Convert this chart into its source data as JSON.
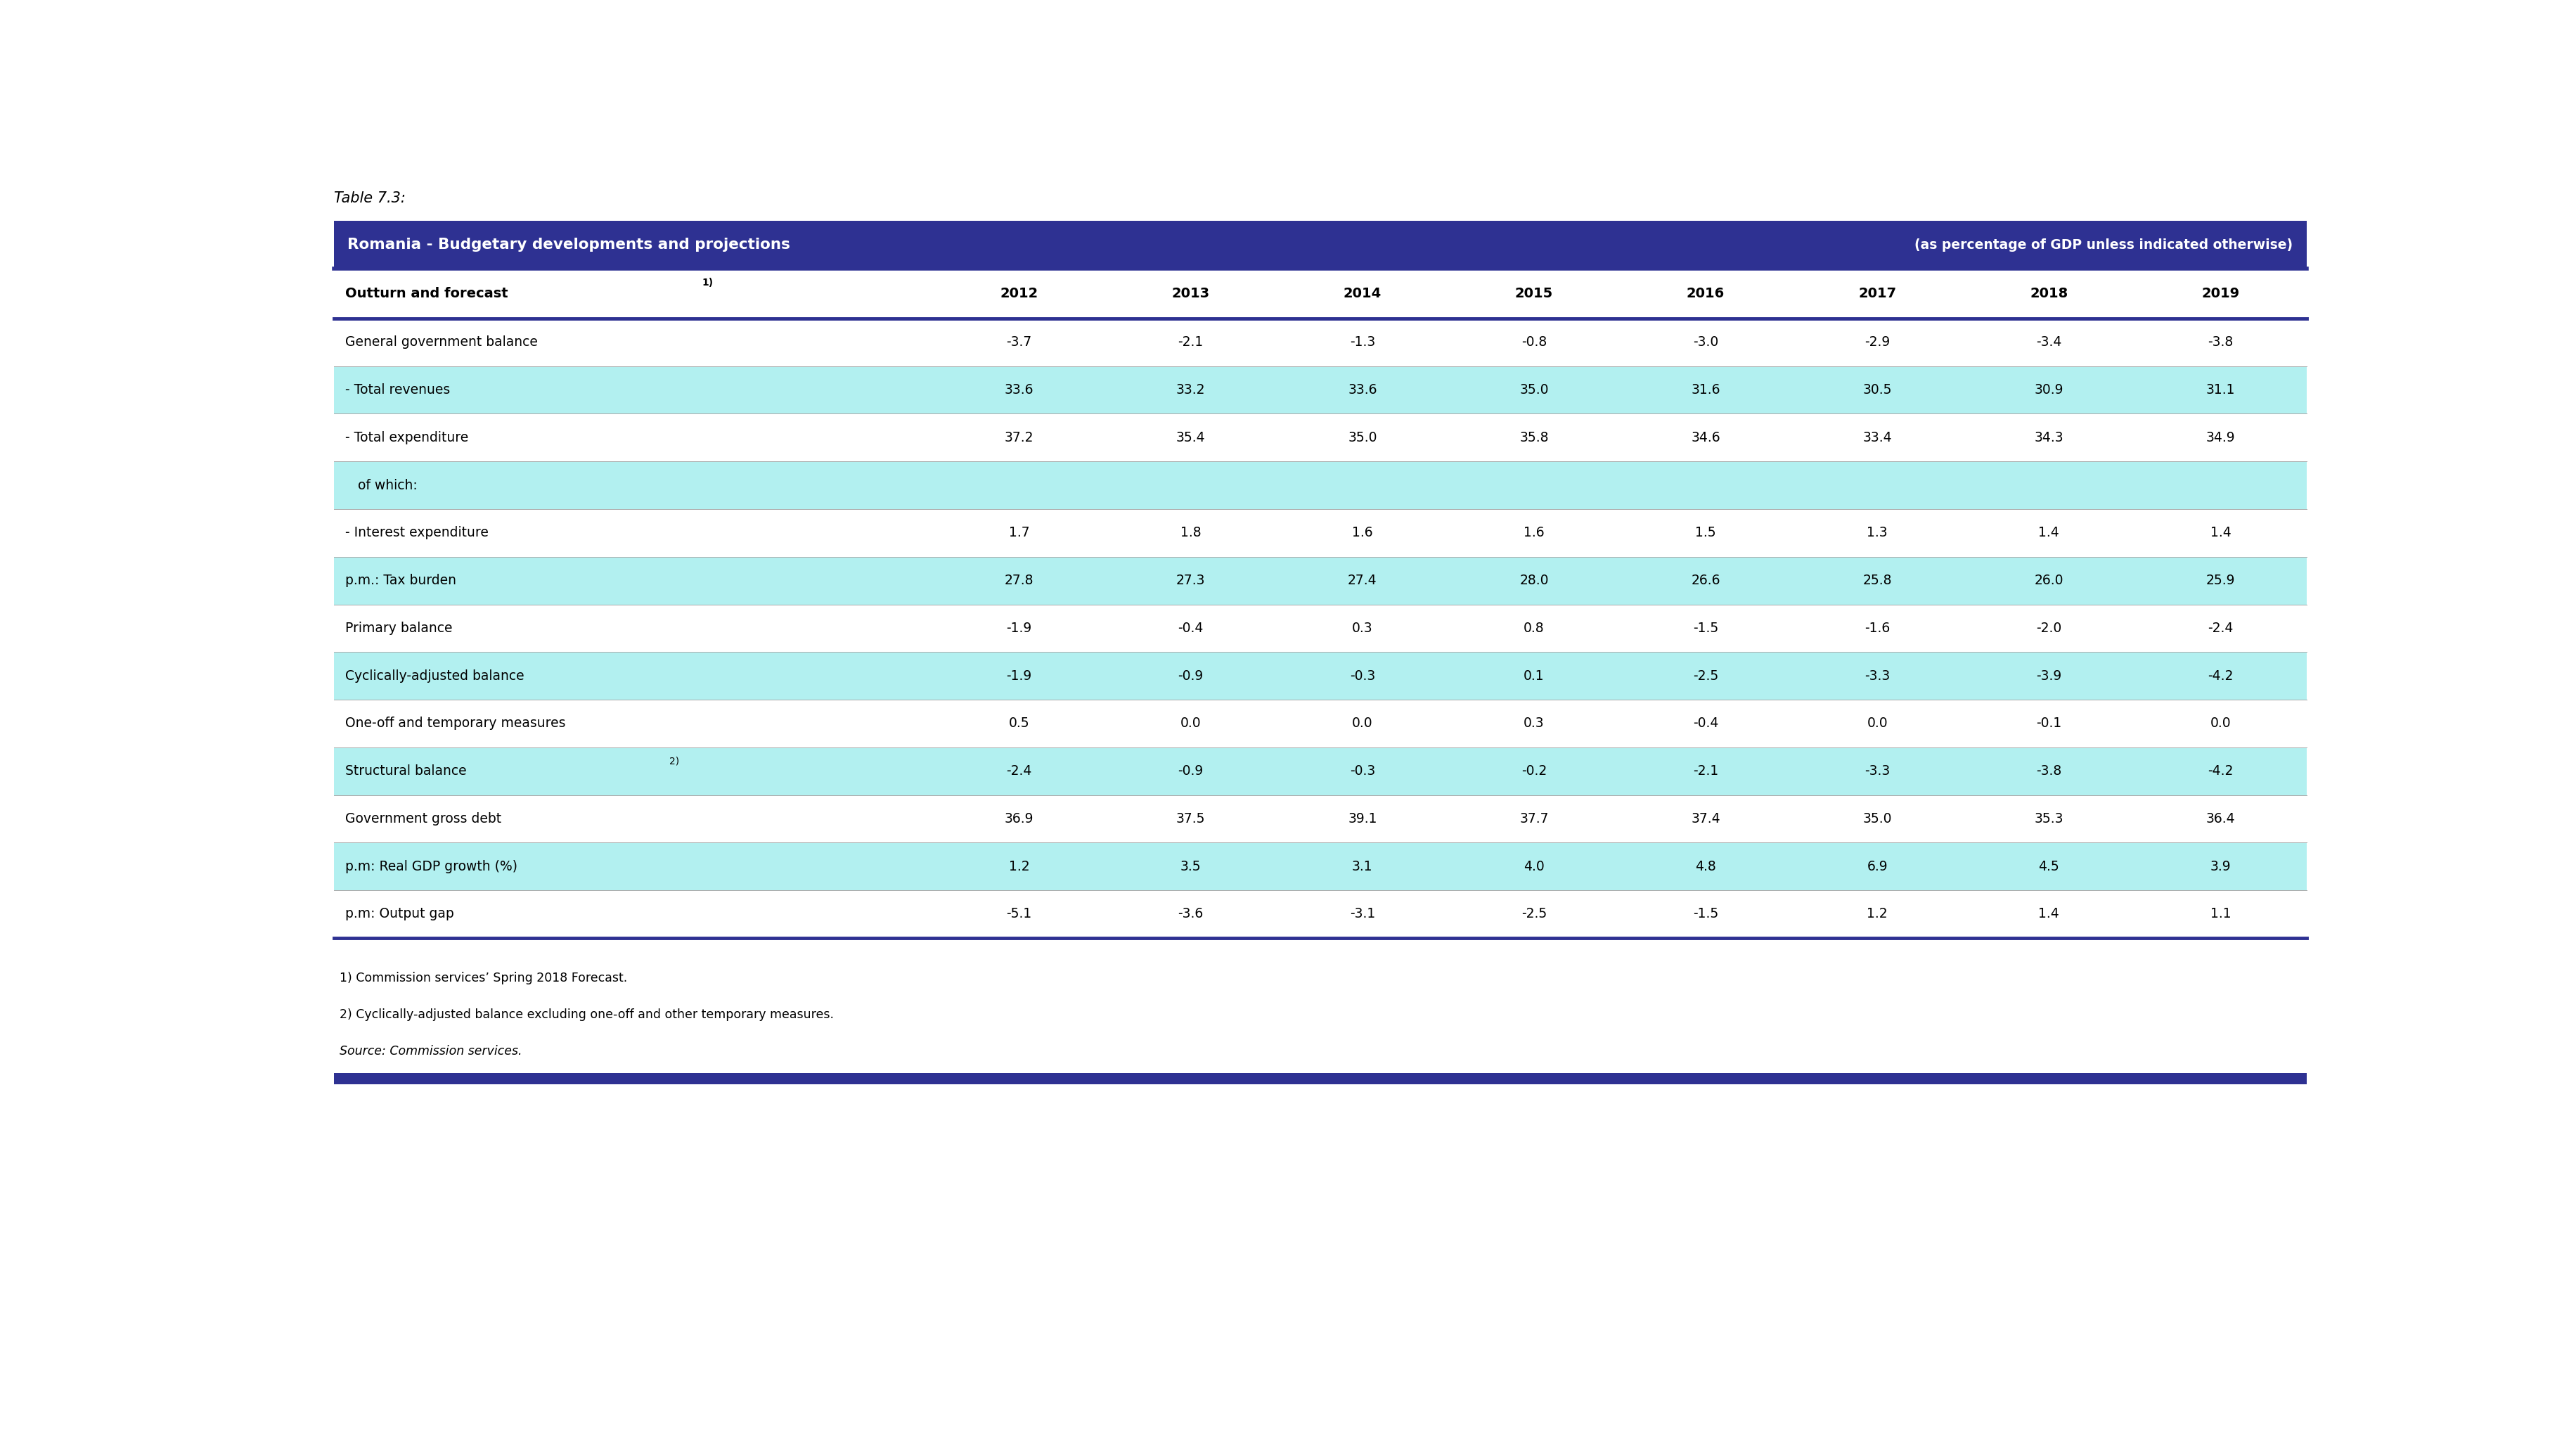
{
  "table_label": "Table 7.3:",
  "title_left": "Romania - Budgetary developments and projections",
  "title_right": "(as percentage of GDP unless indicated otherwise)",
  "years": [
    "2012",
    "2013",
    "2014",
    "2015",
    "2016",
    "2017",
    "2018",
    "2019"
  ],
  "rows": [
    {
      "label": "General government balance",
      "values": [
        "-3.7",
        "-2.1",
        "-1.3",
        "-0.8",
        "-3.0",
        "-2.9",
        "-3.4",
        "-3.8"
      ],
      "bg": "#ffffff",
      "indent": false
    },
    {
      "label": "- Total revenues",
      "values": [
        "33.6",
        "33.2",
        "33.6",
        "35.0",
        "31.6",
        "30.5",
        "30.9",
        "31.1"
      ],
      "bg": "#b2f0f0",
      "indent": false
    },
    {
      "label": "- Total expenditure",
      "values": [
        "37.2",
        "35.4",
        "35.0",
        "35.8",
        "34.6",
        "33.4",
        "34.3",
        "34.9"
      ],
      "bg": "#ffffff",
      "indent": false
    },
    {
      "label": "   of which:",
      "values": [
        "",
        "",
        "",
        "",
        "",
        "",
        "",
        ""
      ],
      "bg": "#b2f0f0",
      "indent": false
    },
    {
      "label": "- Interest expenditure",
      "values": [
        "1.7",
        "1.8",
        "1.6",
        "1.6",
        "1.5",
        "1.3",
        "1.4",
        "1.4"
      ],
      "bg": "#ffffff",
      "indent": false
    },
    {
      "label": "p.m.: Tax burden",
      "values": [
        "27.8",
        "27.3",
        "27.4",
        "28.0",
        "26.6",
        "25.8",
        "26.0",
        "25.9"
      ],
      "bg": "#b2f0f0",
      "indent": false
    },
    {
      "label": "Primary balance",
      "values": [
        "-1.9",
        "-0.4",
        "0.3",
        "0.8",
        "-1.5",
        "-1.6",
        "-2.0",
        "-2.4"
      ],
      "bg": "#ffffff",
      "indent": false
    },
    {
      "label": "Cyclically-adjusted balance",
      "values": [
        "-1.9",
        "-0.9",
        "-0.3",
        "0.1",
        "-2.5",
        "-3.3",
        "-3.9",
        "-4.2"
      ],
      "bg": "#b2f0f0",
      "indent": false
    },
    {
      "label": "One-off and temporary measures",
      "values": [
        "0.5",
        "0.0",
        "0.0",
        "0.3",
        "-0.4",
        "0.0",
        "-0.1",
        "0.0"
      ],
      "bg": "#ffffff",
      "indent": false
    },
    {
      "label": "Structural balance 2)",
      "values": [
        "-2.4",
        "-0.9",
        "-0.3",
        "-0.2",
        "-2.1",
        "-3.3",
        "-3.8",
        "-4.2"
      ],
      "bg": "#b2f0f0",
      "indent": false
    },
    {
      "label": "Government gross debt",
      "values": [
        "36.9",
        "37.5",
        "39.1",
        "37.7",
        "37.4",
        "35.0",
        "35.3",
        "36.4"
      ],
      "bg": "#ffffff",
      "indent": false
    },
    {
      "label": "p.m: Real GDP growth (%)",
      "values": [
        "1.2",
        "3.5",
        "3.1",
        "4.0",
        "4.8",
        "6.9",
        "4.5",
        "3.9"
      ],
      "bg": "#b2f0f0",
      "indent": false
    },
    {
      "label": "p.m: Output gap",
      "values": [
        "-5.1",
        "-3.6",
        "-3.1",
        "-2.5",
        "-1.5",
        "1.2",
        "1.4",
        "1.1"
      ],
      "bg": "#ffffff",
      "indent": false
    }
  ],
  "footnote1": "1) Commission services’ Spring 2018 Forecast.",
  "footnote2": "2) Cyclically-adjusted balance excluding one-off and other temporary measures.",
  "source": "Source: Commission services.",
  "dark_blue": "#2e3192",
  "light_blue": "#b2f0f0",
  "white": "#ffffff",
  "text_color": "#000000"
}
